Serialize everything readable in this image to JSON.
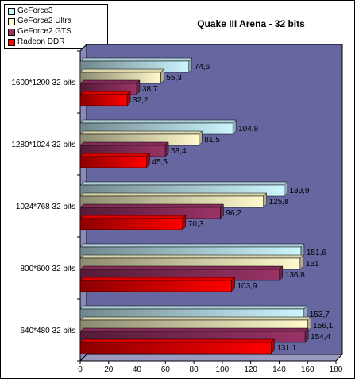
{
  "chart_data": {
    "type": "bar",
    "orientation": "horizontal",
    "title": "Quake III Arena - 32 bits",
    "categories": [
      "1600*1200 32 bits",
      "1280*1024 32 bits",
      "1024*768 32 bits",
      "800*600 32 bits",
      "640*480 32 bits"
    ],
    "series": [
      {
        "name": "GeForce3",
        "color": "#ccf6ff",
        "values": [
          74.6,
          104.8,
          139.9,
          151.6,
          153.7
        ],
        "value_labels": [
          "74,6",
          "104,8",
          "139,9",
          "151,6",
          "153,7"
        ]
      },
      {
        "name": "GeForce2 Ultra",
        "color": "#fffacc",
        "values": [
          55.3,
          81.5,
          125.8,
          151,
          156.1
        ],
        "value_labels": [
          "55,3",
          "81,5",
          "125,8",
          "151",
          "156,1"
        ]
      },
      {
        "name": "GeForce2 GTS",
        "color": "#993366",
        "values": [
          38.7,
          58.4,
          96.2,
          136.8,
          154.4
        ],
        "value_labels": [
          "38,7",
          "58,4",
          "96,2",
          "136,8",
          "154,4"
        ]
      },
      {
        "name": "Radeon DDR",
        "color": "#ff0000",
        "values": [
          32.2,
          45.5,
          70.3,
          103.9,
          131.1
        ],
        "value_labels": [
          "32,2",
          "45,5",
          "70,3",
          "103,9",
          "131,1"
        ]
      }
    ],
    "xlim": [
      0,
      180
    ],
    "xticks": [
      0,
      20,
      40,
      60,
      80,
      100,
      120,
      140,
      160,
      180
    ],
    "xlabel": "",
    "ylabel": "",
    "grid": false,
    "legend_position": "top-left",
    "plot_background": "#6666a0"
  }
}
